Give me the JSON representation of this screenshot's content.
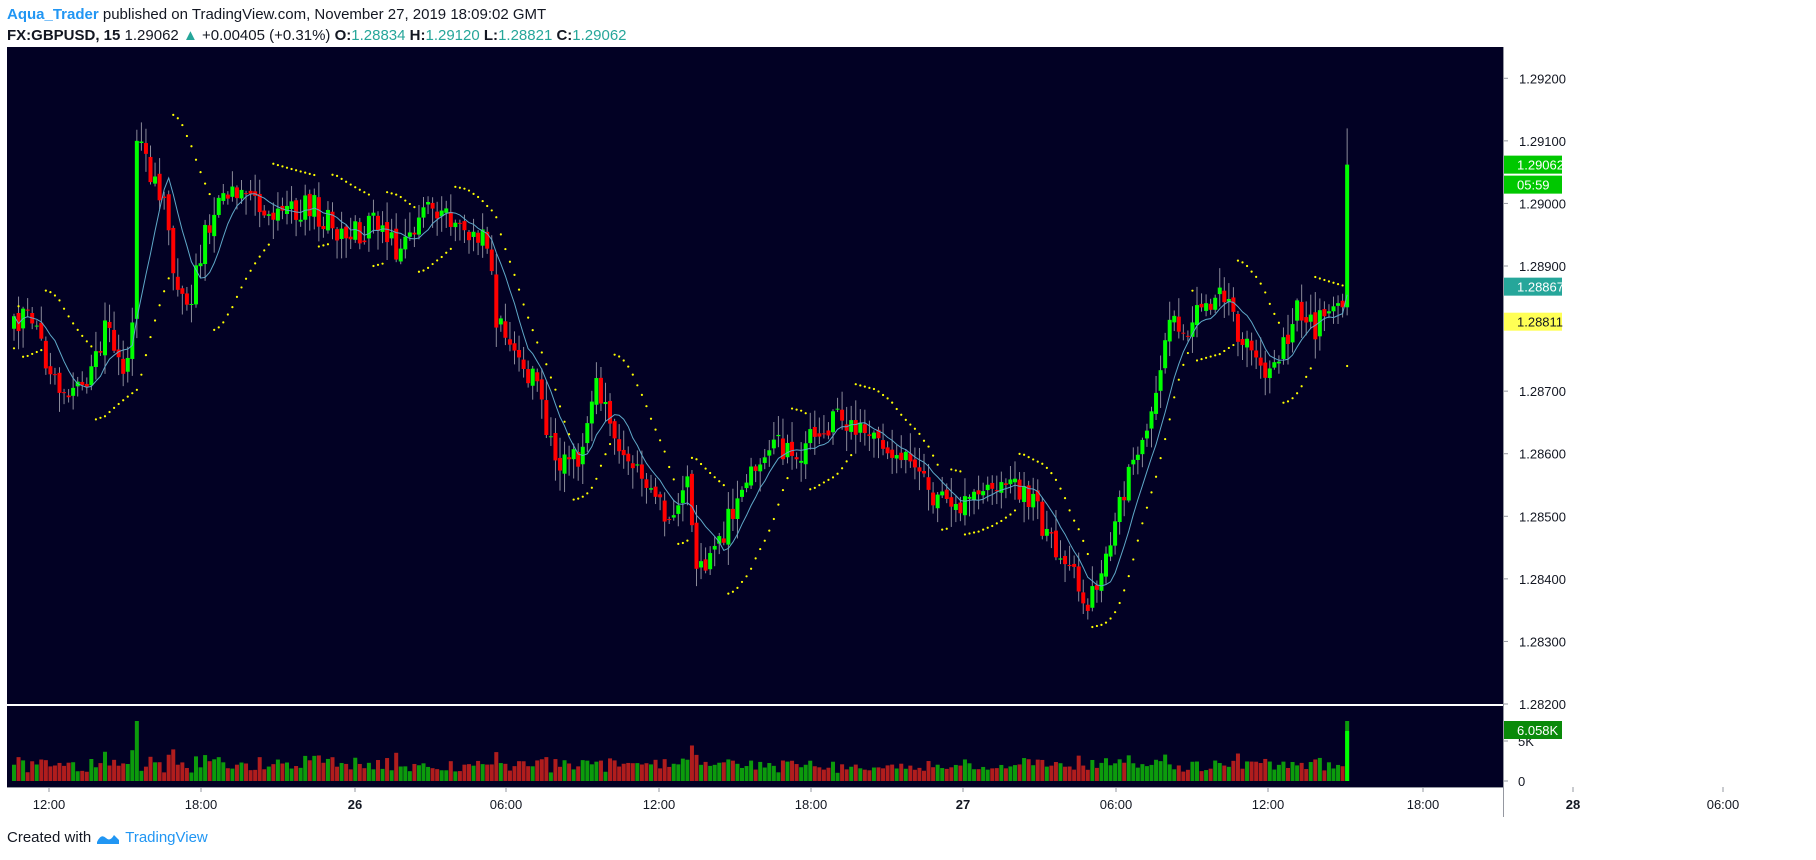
{
  "header": {
    "author": "Aqua_Trader",
    "published": "published on TradingView.com, November 27, 2019 18:09:02 GMT",
    "symbol": "FX:GBPUSD, 15",
    "last": "1.29062",
    "change": "+0.00405 (+0.31%)",
    "o_label": "O:",
    "o_value": "1.28834",
    "h_label": "H:",
    "h_value": "1.29120",
    "l_label": "L:",
    "l_value": "1.28821",
    "c_label": "C:",
    "c_value": "1.29062"
  },
  "footer": {
    "created_with": "Created with",
    "brand": "TradingView"
  },
  "price_tags": {
    "last": "1.29062",
    "countdown": "05:59",
    "ma": "1.28867",
    "sar": "1.28811",
    "volume": "6.058K"
  },
  "colors": {
    "background": "#020124",
    "up": "#00ff00",
    "down": "#ff0000",
    "ma": "#5fa8c8",
    "sar": "#ffff00",
    "vol_up": "#0c9b0c",
    "vol_down": "#b01d1d",
    "tag_last": "#00c800",
    "tag_ma": "#26a69a",
    "tag_sar": "#ffff55"
  },
  "chart_data": {
    "type": "candlestick",
    "ylim": [
      1.282,
      1.2925
    ],
    "y_ticks": [
      "1.29200",
      "1.29100",
      "1.29000",
      "1.28900",
      "1.28700",
      "1.28600",
      "1.28500",
      "1.28400",
      "1.28300",
      "1.28200"
    ],
    "x_ticks": [
      "12:00",
      "18:00",
      "26",
      "06:00",
      "12:00",
      "18:00",
      "27",
      "06:00",
      "12:00",
      "18:00",
      "28",
      "06:00"
    ],
    "volume_ticks": [
      "5K",
      "0"
    ],
    "anchors": [
      [
        0,
        1.288
      ],
      [
        4,
        1.2883
      ],
      [
        8,
        1.2873
      ],
      [
        12,
        1.2868
      ],
      [
        16,
        1.2872
      ],
      [
        20,
        1.288
      ],
      [
        24,
        1.2872
      ],
      [
        26,
        1.288
      ],
      [
        27,
        1.291
      ],
      [
        30,
        1.2905
      ],
      [
        33,
        1.29
      ],
      [
        36,
        1.2885
      ],
      [
        39,
        1.2885
      ],
      [
        42,
        1.2895
      ],
      [
        46,
        1.2902
      ],
      [
        50,
        1.2902
      ],
      [
        55,
        1.29
      ],
      [
        60,
        1.2898
      ],
      [
        65,
        1.29
      ],
      [
        70,
        1.2896
      ],
      [
        75,
        1.2895
      ],
      [
        80,
        1.2897
      ],
      [
        85,
        1.2892
      ],
      [
        90,
        1.29
      ],
      [
        95,
        1.2898
      ],
      [
        100,
        1.2895
      ],
      [
        104,
        1.2895
      ],
      [
        106,
        1.288
      ],
      [
        110,
        1.2878
      ],
      [
        114,
        1.2872
      ],
      [
        117,
        1.2865
      ],
      [
        120,
        1.2858
      ],
      [
        124,
        1.286
      ],
      [
        128,
        1.2872
      ],
      [
        132,
        1.2862
      ],
      [
        136,
        1.2857
      ],
      [
        140,
        1.2855
      ],
      [
        144,
        1.285
      ],
      [
        148,
        1.2858
      ],
      [
        150,
        1.2843
      ],
      [
        153,
        1.2842
      ],
      [
        156,
        1.2847
      ],
      [
        160,
        1.2855
      ],
      [
        164,
        1.286
      ],
      [
        168,
        1.2862
      ],
      [
        172,
        1.2858
      ],
      [
        176,
        1.2864
      ],
      [
        180,
        1.2865
      ],
      [
        184,
        1.2865
      ],
      [
        188,
        1.2862
      ],
      [
        192,
        1.2862
      ],
      [
        196,
        1.286
      ],
      [
        200,
        1.2855
      ],
      [
        204,
        1.2852
      ],
      [
        208,
        1.285
      ],
      [
        212,
        1.2855
      ],
      [
        216,
        1.2855
      ],
      [
        220,
        1.2855
      ],
      [
        224,
        1.2852
      ],
      [
        228,
        1.2845
      ],
      [
        232,
        1.2843
      ],
      [
        235,
        1.2835
      ],
      [
        238,
        1.284
      ],
      [
        242,
        1.285
      ],
      [
        246,
        1.2858
      ],
      [
        250,
        1.2868
      ],
      [
        254,
        1.288
      ],
      [
        258,
        1.288
      ],
      [
        262,
        1.2885
      ],
      [
        266,
        1.2885
      ],
      [
        270,
        1.2877
      ],
      [
        274,
        1.2874
      ],
      [
        278,
        1.2875
      ],
      [
        282,
        1.2884
      ],
      [
        286,
        1.288
      ],
      [
        290,
        1.2883
      ],
      [
        292,
        1.28834
      ],
      [
        293,
        1.29062
      ]
    ]
  }
}
